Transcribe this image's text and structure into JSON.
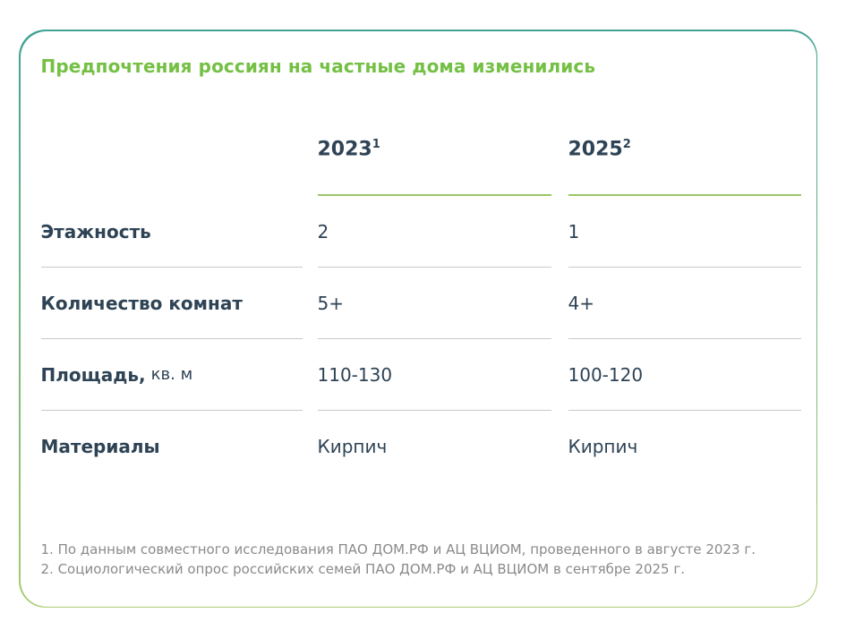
{
  "title": "Предпочтения россиян на частные дома изменились",
  "table": {
    "col_headers": [
      {
        "year": "2023",
        "sup": "1"
      },
      {
        "year": "2025",
        "sup": "2"
      }
    ],
    "rows": [
      {
        "label_bold": "Этажность",
        "label_rest": "",
        "val_2023": "2",
        "val_2025": "1"
      },
      {
        "label_bold": "Количество комнат",
        "label_rest": "",
        "val_2023": "5+",
        "val_2025": "4+"
      },
      {
        "label_bold": "Площадь,",
        "label_rest": "кв. м",
        "val_2023": "110-130",
        "val_2025": "100-120"
      },
      {
        "label_bold": "Материалы",
        "label_rest": "",
        "val_2023": "Кирпич",
        "val_2025": "Кирпич"
      }
    ]
  },
  "footnotes": {
    "line1": "1. По данным совместного исследования ПАО ДОМ.РФ и АЦ ВЦИОМ, проведенного в августе 2023 г.",
    "line2": "2. Социологический опрос российских семей ПАО ДОМ.РФ и АЦ ВЦИОМ в сентябре 2025 г."
  },
  "colors": {
    "title_green": "#74c044",
    "header_underline_green": "#9cc76a",
    "border_top_teal": "#3fa294",
    "border_bottom_green": "#a7cb6e",
    "text_navy": "#2e4355",
    "separator_gray": "#c9c9c9",
    "footnote_gray": "#8a8a8a"
  }
}
